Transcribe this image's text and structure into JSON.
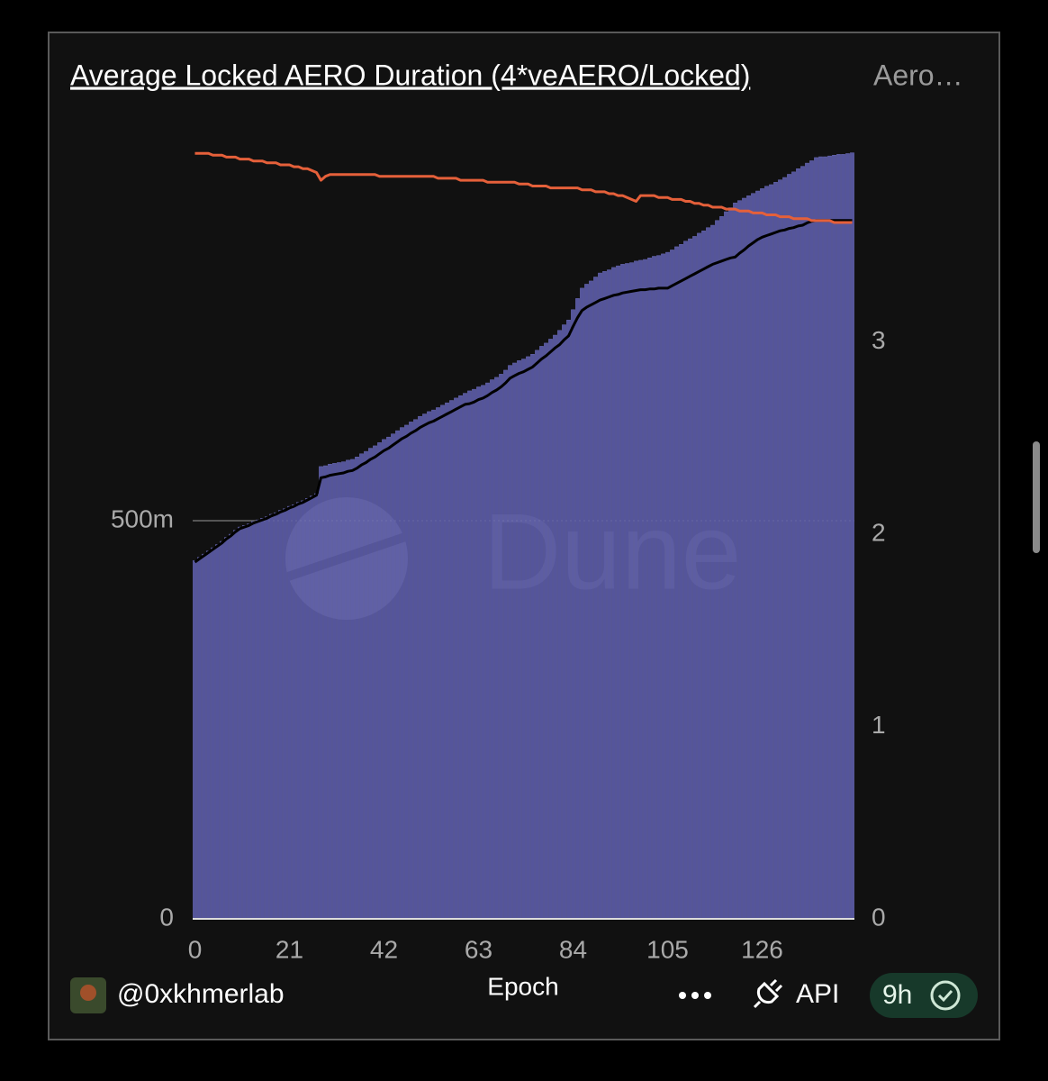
{
  "chart_data": {
    "type": "bar_line",
    "title": "Average Locked AERO Duration (4*veAERO/Locked)",
    "watermark": "Dune",
    "x_label": "Epoch",
    "x": [
      0,
      1,
      2,
      3,
      4,
      5,
      6,
      7,
      8,
      9,
      10,
      11,
      12,
      13,
      14,
      15,
      16,
      17,
      18,
      19,
      20,
      21,
      22,
      23,
      24,
      25,
      26,
      27,
      28,
      29,
      30,
      31,
      32,
      33,
      34,
      35,
      36,
      37,
      38,
      39,
      40,
      41,
      42,
      43,
      44,
      45,
      46,
      47,
      48,
      49,
      50,
      51,
      52,
      53,
      54,
      55,
      56,
      57,
      58,
      59,
      60,
      61,
      62,
      63,
      64,
      65,
      66,
      67,
      68,
      69,
      70,
      71,
      72,
      73,
      74,
      75,
      76,
      77,
      78,
      79,
      80,
      81,
      82,
      83,
      84,
      85,
      86,
      87,
      88,
      89,
      90,
      91,
      92,
      93,
      94,
      95,
      96,
      97,
      98,
      99,
      100,
      101,
      102,
      103,
      104,
      105,
      106,
      107,
      108,
      109,
      110,
      111,
      112,
      113,
      114,
      115,
      116,
      117,
      118,
      119,
      120,
      121,
      122,
      123,
      124,
      125,
      126,
      127,
      128,
      129,
      130,
      131,
      132,
      133,
      134,
      135,
      136,
      137,
      138,
      139,
      140,
      141,
      142,
      143,
      144,
      145,
      146
    ],
    "xlim": [
      -0.5,
      146.5
    ],
    "xticks": [
      0,
      21,
      42,
      63,
      84,
      105,
      126
    ],
    "ylim": [
      0,
      1000000000
    ],
    "yticks": [
      0,
      {
        "value": 500000000,
        "label": "500m"
      }
    ],
    "y2lim": [
      0,
      4.14
    ],
    "y2ticks": [
      0,
      1,
      2,
      3
    ],
    "grid": true,
    "series": [
      {
        "kind": "bar",
        "axis": "y",
        "color": "#55559b",
        "values": [
          450000000,
          454000000,
          458000000,
          462000000,
          466000000,
          470000000,
          474000000,
          479000000,
          483000000,
          488000000,
          492000000,
          494000000,
          496000000,
          499000000,
          501000000,
          503000000,
          505000000,
          508000000,
          510000000,
          513000000,
          515000000,
          518000000,
          520000000,
          523000000,
          525000000,
          528000000,
          531000000,
          534000000,
          568000000,
          569000000,
          571000000,
          572000000,
          573000000,
          574000000,
          576000000,
          577000000,
          580000000,
          584000000,
          587000000,
          591000000,
          594000000,
          598000000,
          602000000,
          605000000,
          609000000,
          613000000,
          617000000,
          620000000,
          624000000,
          627000000,
          631000000,
          634000000,
          637000000,
          639000000,
          642000000,
          645000000,
          648000000,
          651000000,
          654000000,
          657000000,
          660000000,
          663000000,
          665000000,
          668000000,
          670000000,
          673000000,
          677000000,
          680000000,
          684000000,
          689000000,
          695000000,
          698000000,
          701000000,
          703000000,
          706000000,
          709000000,
          714000000,
          719000000,
          723000000,
          728000000,
          733000000,
          739000000,
          746000000,
          752000000,
          765000000,
          779000000,
          792000000,
          797000000,
          801000000,
          806000000,
          811000000,
          813000000,
          815000000,
          818000000,
          820000000,
          822000000,
          823000000,
          824000000,
          826000000,
          827000000,
          828000000,
          830000000,
          832000000,
          833000000,
          835000000,
          837000000,
          840000000,
          844000000,
          847000000,
          851000000,
          854000000,
          857000000,
          861000000,
          864000000,
          868000000,
          871000000,
          877000000,
          882000000,
          888000000,
          893000000,
          899000000,
          902000000,
          905000000,
          908000000,
          911000000,
          914000000,
          917000000,
          920000000,
          922000000,
          925000000,
          928000000,
          931000000,
          935000000,
          938000000,
          942000000,
          945000000,
          949000000,
          952000000,
          956000000,
          957000000,
          957000000,
          958000000,
          959000000,
          960000000,
          960000000,
          961000000,
          962000000
        ]
      },
      {
        "kind": "line",
        "axis": "y",
        "color": "#000000",
        "values": [
          448000000,
          452000000,
          456000000,
          460000000,
          464000000,
          468000000,
          472000000,
          477000000,
          481000000,
          486000000,
          490000000,
          492000000,
          494000000,
          497000000,
          499000000,
          501000000,
          503000000,
          506000000,
          508000000,
          511000000,
          513000000,
          516000000,
          518000000,
          521000000,
          523000000,
          526000000,
          529000000,
          532000000,
          554000000,
          555000000,
          557000000,
          558000000,
          559000000,
          560000000,
          562000000,
          563000000,
          566000000,
          570000000,
          573000000,
          577000000,
          580000000,
          584000000,
          588000000,
          591000000,
          595000000,
          599000000,
          603000000,
          606000000,
          610000000,
          613000000,
          617000000,
          620000000,
          623000000,
          625000000,
          628000000,
          631000000,
          634000000,
          637000000,
          640000000,
          643000000,
          646000000,
          647000000,
          649000000,
          652000000,
          654000000,
          657000000,
          661000000,
          664000000,
          668000000,
          673000000,
          679000000,
          682000000,
          685000000,
          687000000,
          690000000,
          693000000,
          698000000,
          703000000,
          707000000,
          712000000,
          717000000,
          721000000,
          727000000,
          732000000,
          744000000,
          755000000,
          764000000,
          768000000,
          771000000,
          774000000,
          777000000,
          779000000,
          781000000,
          783000000,
          784000000,
          786000000,
          787000000,
          788000000,
          789000000,
          790000000,
          790000000,
          791000000,
          791000000,
          792000000,
          792000000,
          792000000,
          795000000,
          798000000,
          801000000,
          804000000,
          807000000,
          810000000,
          813000000,
          816000000,
          819000000,
          822000000,
          824000000,
          826000000,
          828000000,
          830000000,
          831000000,
          836000000,
          840000000,
          845000000,
          849000000,
          853000000,
          856000000,
          858000000,
          860000000,
          862000000,
          864000000,
          865000000,
          867000000,
          868000000,
          870000000,
          871000000,
          874000000,
          876000000,
          877000000,
          877000000,
          877000000,
          877000000,
          877000000,
          877000000,
          877000000,
          877000000,
          877000000
        ]
      },
      {
        "kind": "line",
        "axis": "y2",
        "color": "#e5603a",
        "values": [
          3.98,
          3.98,
          3.98,
          3.98,
          3.97,
          3.97,
          3.97,
          3.96,
          3.96,
          3.96,
          3.95,
          3.95,
          3.95,
          3.94,
          3.94,
          3.94,
          3.93,
          3.93,
          3.93,
          3.92,
          3.92,
          3.92,
          3.91,
          3.91,
          3.9,
          3.9,
          3.89,
          3.88,
          3.84,
          3.86,
          3.87,
          3.87,
          3.87,
          3.87,
          3.87,
          3.87,
          3.87,
          3.87,
          3.87,
          3.87,
          3.87,
          3.86,
          3.86,
          3.86,
          3.86,
          3.86,
          3.86,
          3.86,
          3.86,
          3.86,
          3.86,
          3.86,
          3.86,
          3.86,
          3.85,
          3.85,
          3.85,
          3.85,
          3.85,
          3.84,
          3.84,
          3.84,
          3.84,
          3.84,
          3.84,
          3.83,
          3.83,
          3.83,
          3.83,
          3.83,
          3.83,
          3.83,
          3.82,
          3.82,
          3.82,
          3.81,
          3.81,
          3.81,
          3.81,
          3.8,
          3.8,
          3.8,
          3.8,
          3.8,
          3.8,
          3.8,
          3.79,
          3.79,
          3.79,
          3.78,
          3.78,
          3.78,
          3.77,
          3.77,
          3.76,
          3.76,
          3.75,
          3.74,
          3.73,
          3.76,
          3.76,
          3.76,
          3.76,
          3.75,
          3.75,
          3.75,
          3.74,
          3.74,
          3.74,
          3.73,
          3.73,
          3.72,
          3.72,
          3.71,
          3.71,
          3.7,
          3.7,
          3.7,
          3.69,
          3.69,
          3.69,
          3.68,
          3.68,
          3.68,
          3.67,
          3.67,
          3.67,
          3.66,
          3.66,
          3.66,
          3.65,
          3.65,
          3.65,
          3.64,
          3.64,
          3.64,
          3.64,
          3.63,
          3.63,
          3.63,
          3.63,
          3.63,
          3.62,
          3.62,
          3.62,
          3.62,
          3.62
        ]
      }
    ]
  },
  "header": {
    "tab": "Aero…"
  },
  "footer": {
    "author": "@0xkhmerlab",
    "api": "API",
    "age": "9h"
  }
}
